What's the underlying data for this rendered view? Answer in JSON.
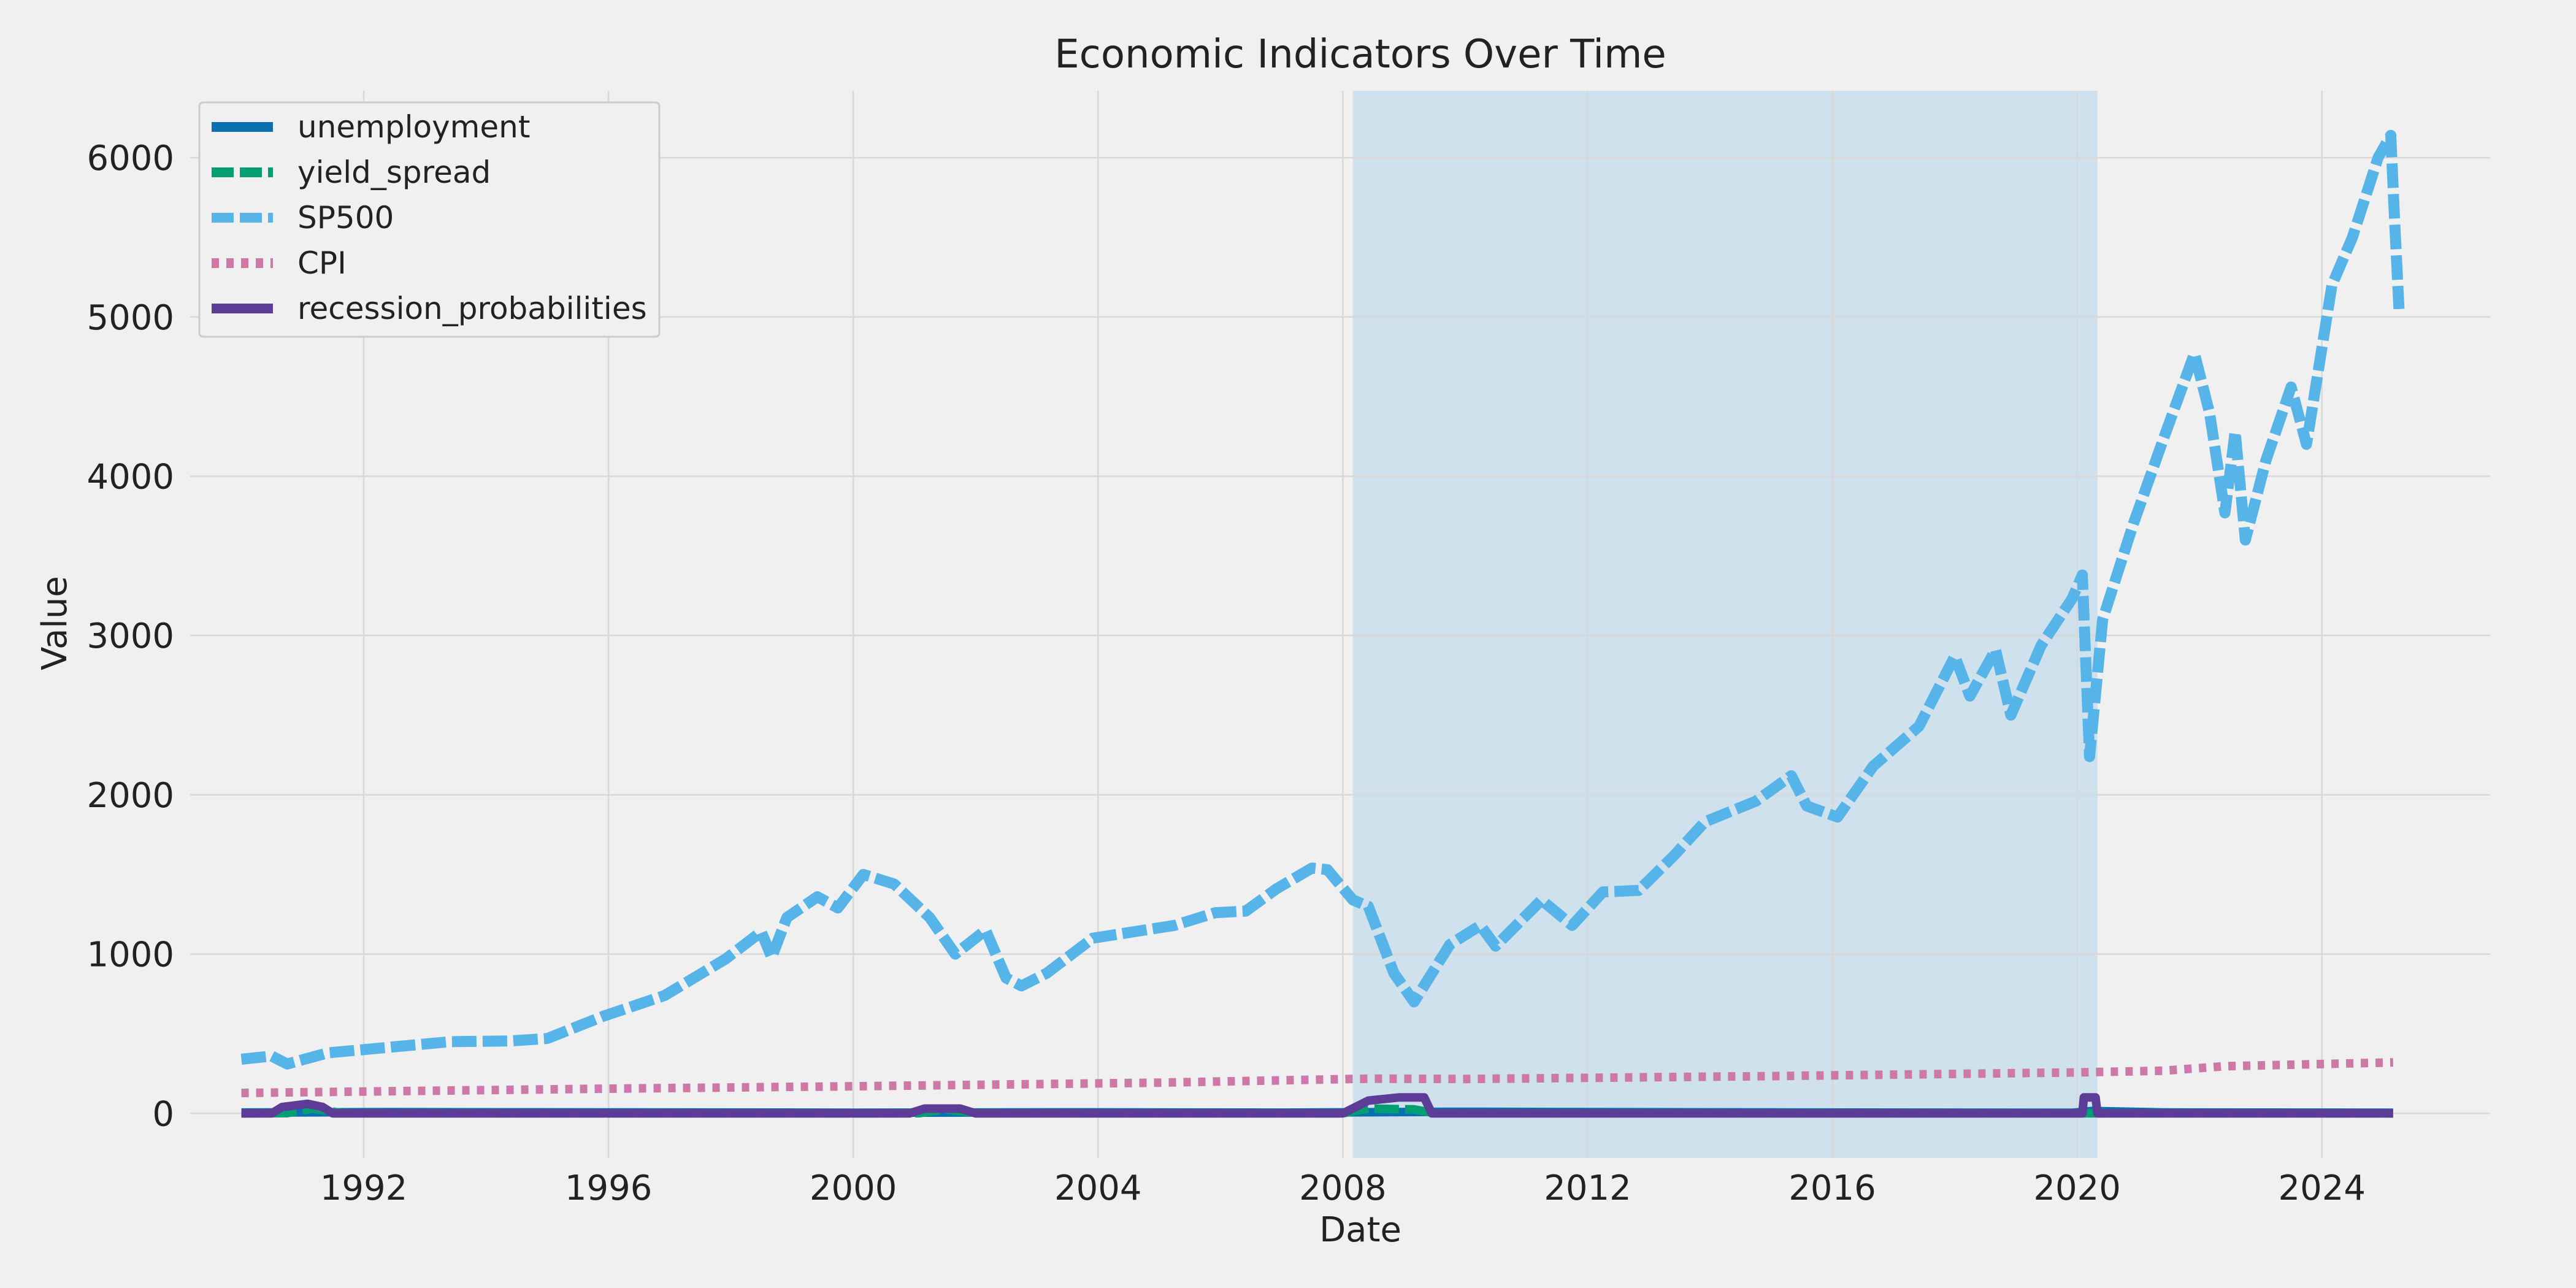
{
  "chart_data": {
    "type": "line",
    "title": "Economic Indicators Over Time",
    "xlabel": "Date",
    "ylabel": "Value",
    "xlim": [
      "1989-03-01",
      "2026-10-01"
    ],
    "ylim": [
      -280,
      6420
    ],
    "x_ticks": [
      "1992",
      "1996",
      "2000",
      "2004",
      "2008",
      "2012",
      "2016",
      "2020",
      "2024"
    ],
    "y_ticks": [
      0,
      1000,
      2000,
      3000,
      4000,
      5000,
      6000
    ],
    "grid": true,
    "legend_position": "top-left",
    "shaded_regions": [
      {
        "start": "2008-03-01",
        "end": "2020-05-01",
        "color": "#a6cfe6"
      }
    ],
    "series": [
      {
        "name": "unemployment",
        "color": "#0a70b0",
        "style": "solid",
        "x": [
          "1990-01-01",
          "1992-06-01",
          "2000-01-01",
          "2003-06-01",
          "2007-01-01",
          "2009-10-01",
          "2015-01-01",
          "2019-12-01",
          "2020-04-01",
          "2021-06-01",
          "2025-03-01"
        ],
        "values": [
          5.4,
          7.6,
          4.0,
          6.3,
          4.6,
          10.0,
          5.7,
          3.6,
          14.8,
          5.9,
          4.1
        ]
      },
      {
        "name": "yield_spread",
        "color": "#049e73",
        "style": "dashed",
        "x": [
          "1990-01-01",
          "1990-10-01",
          "1991-03-01",
          "1991-09-01",
          "2000-01-01",
          "2001-02-01",
          "2001-07-01",
          "2002-01-01",
          "2008-01-01",
          "2008-06-01",
          "2009-03-01",
          "2009-07-01",
          "2025-03-01"
        ],
        "values": [
          0.3,
          1.5,
          30,
          1.0,
          0.2,
          1.0,
          25,
          1.0,
          0.5,
          30,
          25,
          1.0,
          0.3
        ]
      },
      {
        "name": "SP500",
        "color": "#56b4e9",
        "style": "dashed",
        "x": [
          "1990-01-01",
          "1990-07-01",
          "1990-10-01",
          "1991-06-01",
          "1992-06-01",
          "1993-06-01",
          "1994-06-01",
          "1995-01-01",
          "1995-12-01",
          "1996-12-01",
          "1997-12-01",
          "1998-07-01",
          "1998-09-01",
          "1998-12-01",
          "1999-06-01",
          "1999-10-01",
          "2000-03-01",
          "2000-09-01",
          "2001-04-01",
          "2001-09-01",
          "2002-03-01",
          "2002-07-01",
          "2002-10-01",
          "2003-03-01",
          "2003-12-01",
          "2004-06-01",
          "2005-04-01",
          "2005-12-01",
          "2006-06-01",
          "2006-12-01",
          "2007-07-01",
          "2007-10-01",
          "2008-03-01",
          "2008-06-01",
          "2008-11-01",
          "2009-03-01",
          "2009-10-01",
          "2010-04-01",
          "2010-07-01",
          "2011-04-01",
          "2011-10-01",
          "2012-04-01",
          "2012-11-01",
          "2013-06-01",
          "2013-12-01",
          "2014-10-01",
          "2015-05-01",
          "2015-08-01",
          "2016-02-01",
          "2016-09-01",
          "2017-06-01",
          "2018-01-01",
          "2018-04-01",
          "2018-09-01",
          "2018-12-01",
          "2019-06-01",
          "2019-12-01",
          "2020-02-01",
          "2020-03-15",
          "2020-06-01",
          "2020-12-01",
          "2021-06-01",
          "2021-12-01",
          "2022-03-01",
          "2022-06-01",
          "2022-08-01",
          "2022-10-01",
          "2023-02-01",
          "2023-07-01",
          "2023-10-01",
          "2024-03-01",
          "2024-07-01",
          "2024-12-01",
          "2025-02-15",
          "2025-03-10",
          "2025-04-05"
        ],
        "values": [
          340,
          360,
          310,
          380,
          415,
          450,
          455,
          470,
          610,
          740,
          970,
          1140,
          980,
          1230,
          1360,
          1290,
          1500,
          1440,
          1230,
          1000,
          1150,
          850,
          800,
          880,
          1100,
          1130,
          1180,
          1260,
          1270,
          1410,
          1540,
          1530,
          1340,
          1300,
          880,
          700,
          1060,
          1180,
          1050,
          1340,
          1180,
          1390,
          1400,
          1620,
          1830,
          1960,
          2120,
          1930,
          1860,
          2180,
          2430,
          2870,
          2620,
          2910,
          2500,
          2940,
          3230,
          3380,
          2240,
          3100,
          3700,
          4240,
          4770,
          4400,
          3770,
          4280,
          3600,
          4100,
          4560,
          4200,
          5200,
          5500,
          6000,
          6140,
          5600,
          5050
        ]
      },
      {
        "name": "CPI",
        "color": "#cc79a7",
        "style": "dotted",
        "x": [
          "1990-01-01",
          "1996-01-01",
          "2000-01-01",
          "2005-01-01",
          "2008-06-01",
          "2010-01-01",
          "2015-01-01",
          "2020-01-01",
          "2021-06-01",
          "2022-06-01",
          "2025-03-01"
        ],
        "values": [
          128,
          155,
          170,
          193,
          218,
          216,
          234,
          257,
          268,
          296,
          320
        ]
      },
      {
        "name": "recession_probabilities",
        "color": "#5c3c96",
        "style": "solid",
        "x": [
          "1990-01-01",
          "1990-07-01",
          "1990-09-01",
          "1991-02-01",
          "1991-05-01",
          "1991-07-01",
          "2000-12-01",
          "2001-03-01",
          "2001-10-01",
          "2002-01-01",
          "2008-01-01",
          "2008-06-01",
          "2008-12-01",
          "2009-05-01",
          "2009-06-15",
          "2020-02-01",
          "2020-02-10",
          "2020-04-20",
          "2020-05-01",
          "2025-03-01"
        ],
        "values": [
          0,
          0,
          40,
          60,
          40,
          0,
          0,
          30,
          30,
          0,
          0,
          80,
          100,
          100,
          0,
          0,
          100,
          100,
          0,
          0
        ]
      }
    ]
  }
}
